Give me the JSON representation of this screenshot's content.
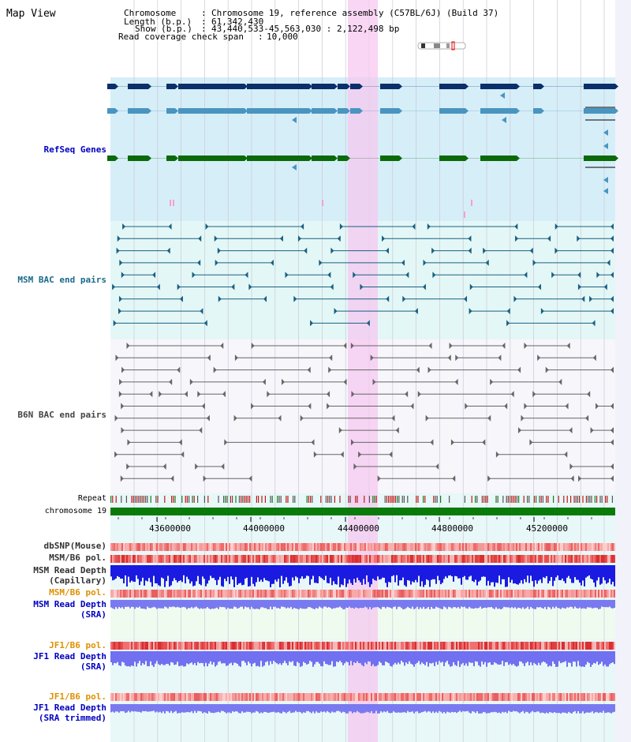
{
  "header": {
    "title": "Map View",
    "chromosome_label": "Chromosome",
    "chromosome_value": "Chromosome 19, reference assembly (C57BL/6J) (Build 37)",
    "length_label": "Length (b.p.)",
    "length_value": "61,342,430",
    "show_label": "Show (b.p.)",
    "show_value": "43,440,533-45,563,030 : 2,122,498 bp",
    "coverage_label": "Read coverage check span",
    "coverage_value": "10,000"
  },
  "tracks": {
    "refseq": "RefSeq Genes",
    "msm_bac": "MSM BAC end pairs",
    "b6n_bac": "B6N BAC end pairs",
    "repeat": "Repeat",
    "chromosome": "chromosome 19",
    "dbsnp": "dbSNP(Mouse)",
    "msm_b6_pol": "MSM/B6 pol.",
    "msm_depth_cap_1": "MSM Read Depth",
    "msm_depth_cap_2": "(Capillary)",
    "msm_b6_pol2": "MSM/B6 pol.",
    "msm_depth_sra_1": "MSM Read Depth",
    "msm_depth_sra_2": "(SRA)",
    "jf1_b6_pol": "JF1/B6 pol.",
    "jf1_depth_1": "JF1 Read Depth",
    "jf1_depth_2": "(SRA)",
    "jf1_b6_pol2": "JF1/B6 pol.",
    "jf1_trim_1": "JF1 Read Depth",
    "jf1_trim_2": "(SRA trimmed)"
  },
  "axis": {
    "ticks": [
      "43600000",
      "44000000",
      "44400000",
      "44800000",
      "45200000"
    ]
  },
  "colors": {
    "refseq_dark": "#0b2f6a",
    "refseq_mid": "#4a94c0",
    "refseq_green": "#0a6a0a",
    "msm_line": "#1a6080",
    "b6n_line": "#666666",
    "highlight": "#f5c8f0",
    "chromosome_bar": "#0a7a0a",
    "label_blue": "#0000c0",
    "label_teal": "#1a6a8a",
    "label_gray": "#444444",
    "label_orange": "#e09000"
  }
}
